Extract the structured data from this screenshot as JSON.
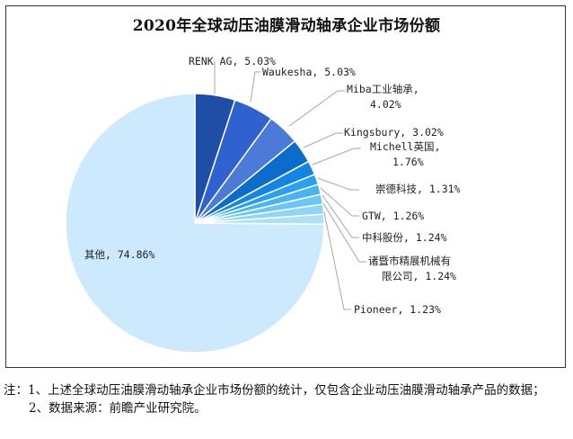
{
  "chart_data": {
    "type": "pie",
    "title": "2020年全球动压油膜滑动轴承企业市场份额",
    "unit": "%",
    "start_angle": "12 o'clock, clockwise",
    "slices": [
      {
        "label": "RENK AG",
        "value": 5.03,
        "text": "RENK AG, 5.03%",
        "color": "#1f4ea6"
      },
      {
        "label": "Waukesha",
        "value": 5.03,
        "text": "Waukesha, 5.03%",
        "color": "#2f62cf"
      },
      {
        "label": "Miba工业轴承",
        "value": 4.02,
        "text": "Miba工业轴承, 4.02%",
        "color": "#4b7bd6"
      },
      {
        "label": "Kingsbury",
        "value": 3.02,
        "text": "Kingsbury, 3.02%",
        "color": "#0b6ccc"
      },
      {
        "label": "Michell英国",
        "value": 1.76,
        "text": "Michell英国, 1.76%",
        "color": "#1485e4"
      },
      {
        "label": "崇德科技",
        "value": 1.31,
        "text": "崇德科技, 1.31%",
        "color": "#2b9ff0"
      },
      {
        "label": "GTW",
        "value": 1.26,
        "text": "GTW, 1.26%",
        "color": "#49b4f2"
      },
      {
        "label": "中科股份",
        "value": 1.24,
        "text": "中科股份, 1.24%",
        "color": "#6cc6f5"
      },
      {
        "label": "诸暨市精展机械有限公司",
        "value": 1.24,
        "text": "诸暨市精展机械有限公司, 1.24%",
        "color": "#8ed5f7"
      },
      {
        "label": "Pioneer",
        "value": 1.23,
        "text": "Pioneer, 1.23%",
        "color": "#aee1f9"
      },
      {
        "label": "其他",
        "value": 74.86,
        "text": "其他, 74.86%",
        "color": "#cce9fd"
      }
    ],
    "legend": "none (data labels with leader lines)"
  },
  "chart": {
    "title": "2020年全球动压油膜滑动轴承企业市场份额",
    "labels": {
      "renk": "RENK AG, 5.03%",
      "waukesha": "Waukesha, 5.03%",
      "miba_1": "Miba工业轴承,",
      "miba_2": "4.02%",
      "kingsbury": "Kingsbury, 3.02%",
      "michell_1": "Michell英国,",
      "michell_2": "1.76%",
      "chongde": "崇德科技, 1.31%",
      "gtw": "GTW, 1.26%",
      "zhongke": "中科股份, 1.24%",
      "zhuji_1": "诸暨市精展机械有",
      "zhuji_2": "限公司, 1.24%",
      "pioneer": "Pioneer, 1.23%",
      "others": "其他, 74.86%"
    }
  },
  "notes": {
    "line1": "注：1、上述全球动压油膜滑动轴承企业市场份额的统计，仅包含企业动压油膜滑动轴承产品的数据；",
    "line2": "2、数据来源：前瞻产业研究院。"
  }
}
